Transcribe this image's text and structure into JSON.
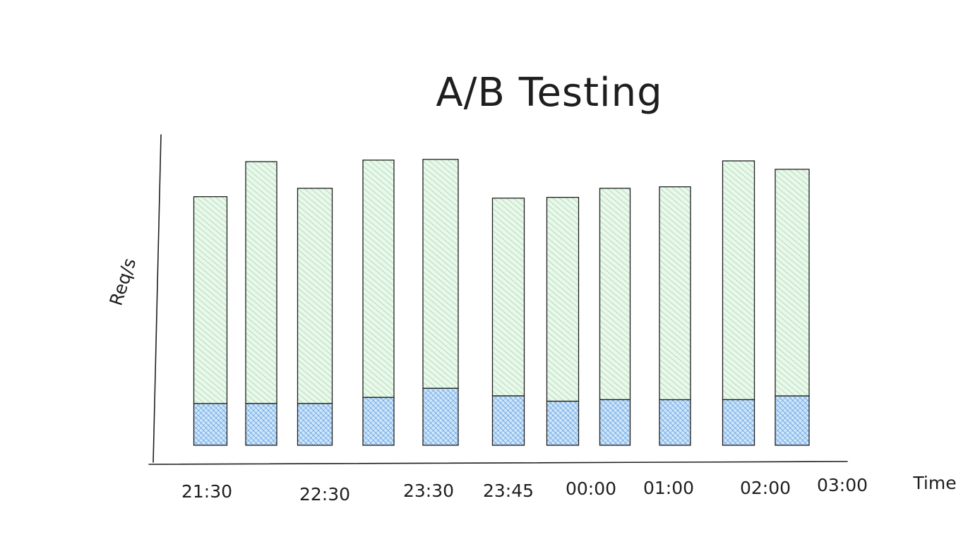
{
  "chart_data": {
    "type": "bar",
    "stacked": true,
    "title": "A/B Testing",
    "xlabel": "Time",
    "ylabel": "Req/s",
    "tick_labels": [
      "21:30",
      "22:30",
      "23:30",
      "23:45",
      "00:00",
      "01:00",
      "02:00",
      "03:00"
    ],
    "bar_count": 11,
    "series": [
      {
        "color": "#1971c2",
        "fill": "#a5d8ff",
        "values": [
          55,
          55,
          55,
          63,
          75,
          65,
          58,
          60,
          60,
          60,
          65
        ]
      },
      {
        "color": "#2f9e44",
        "fill": "#b2f2bb",
        "values": [
          272,
          318,
          283,
          312,
          301,
          260,
          268,
          278,
          280,
          314,
          298
        ]
      }
    ],
    "ylim": [
      0,
      400
    ],
    "grid": false,
    "legend": "none",
    "style": "hand-drawn hatched"
  }
}
